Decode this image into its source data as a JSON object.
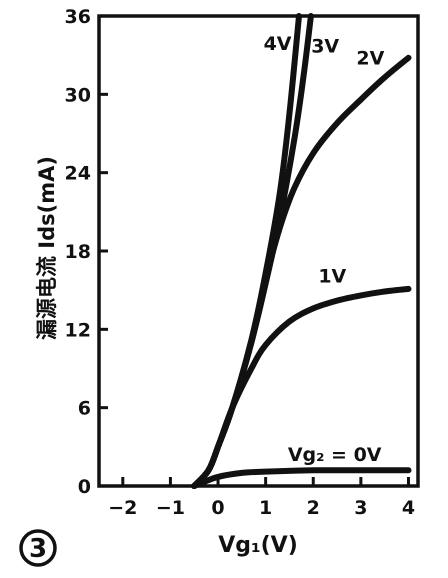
{
  "chart_data": {
    "type": "line",
    "figure_number": "3",
    "xlabel": "Vg₁(V)",
    "ylabel": "漏源电流 Ids(mA)",
    "xlim": [
      -2.5,
      4.2
    ],
    "ylim": [
      0,
      36
    ],
    "x_ticks": [
      -2,
      -1,
      0,
      1,
      2,
      3,
      4
    ],
    "x_tick_labels": [
      "−2",
      "−1",
      "0",
      "1",
      "2",
      "3",
      "4"
    ],
    "y_ticks": [
      0,
      6,
      12,
      18,
      24,
      30,
      36
    ],
    "y_tick_labels": [
      "0",
      "6",
      "12",
      "18",
      "24",
      "30",
      "36"
    ],
    "grid": false,
    "series": [
      {
        "name": "Vg₂=0V",
        "label": "Vg₂ = 0V",
        "x": [
          -0.5,
          -0.3,
          0,
          0.5,
          1,
          2,
          3,
          4
        ],
        "y": [
          0,
          0.3,
          0.7,
          1.0,
          1.1,
          1.2,
          1.2,
          1.2
        ]
      },
      {
        "name": "1V",
        "label": "1V",
        "x": [
          -0.5,
          -0.2,
          0,
          0.3,
          0.7,
          1,
          1.5,
          2,
          2.5,
          3,
          3.5,
          4
        ],
        "y": [
          0,
          1.2,
          3.0,
          6.0,
          9.0,
          10.8,
          12.6,
          13.6,
          14.2,
          14.6,
          14.9,
          15.1
        ]
      },
      {
        "name": "2V",
        "label": "2V",
        "x": [
          -0.5,
          -0.2,
          0,
          0.3,
          0.7,
          1,
          1.3,
          1.6,
          2,
          2.5,
          3,
          3.5,
          4
        ],
        "y": [
          0,
          1.2,
          3.0,
          6.0,
          11.0,
          15.8,
          19.8,
          22.8,
          25.5,
          27.8,
          29.6,
          31.3,
          32.8
        ]
      },
      {
        "name": "3V",
        "label": "3V",
        "x": [
          -0.5,
          -0.2,
          0,
          0.3,
          0.7,
          1,
          1.3,
          1.6,
          1.8,
          1.95
        ],
        "y": [
          0,
          1.2,
          3.0,
          6.0,
          11.0,
          15.5,
          20.5,
          26.5,
          31.5,
          36
        ]
      },
      {
        "name": "4V",
        "label": "4V",
        "x": [
          -0.5,
          -0.2,
          0,
          0.3,
          0.7,
          1,
          1.3,
          1.5,
          1.7
        ],
        "y": [
          0,
          1.2,
          3.0,
          6.0,
          11.2,
          16.3,
          22.5,
          28.5,
          36
        ]
      }
    ]
  }
}
